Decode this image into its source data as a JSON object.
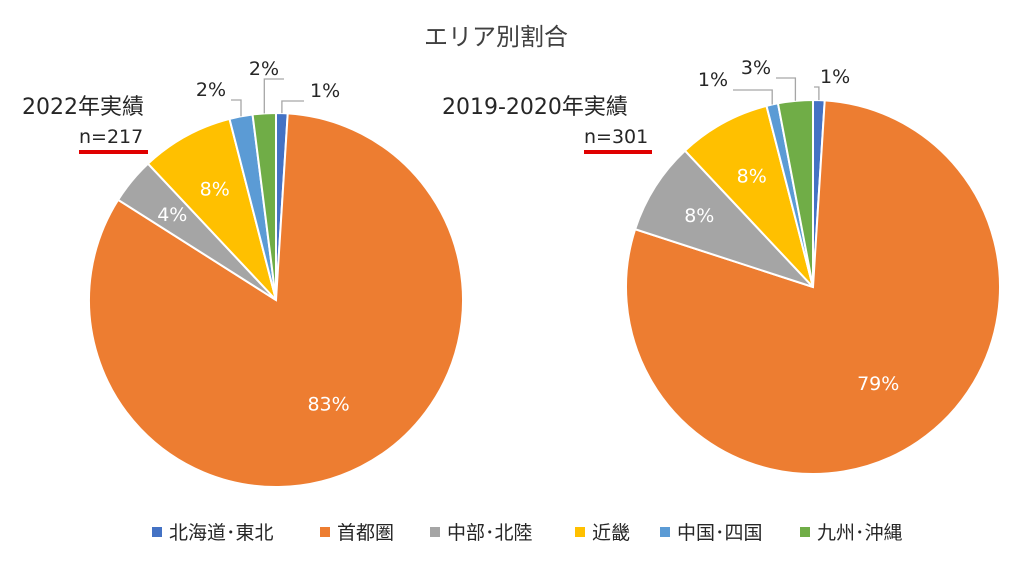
{
  "chart_data": [
    {
      "type": "pie",
      "title": "エリア別割合",
      "name": "2022年実績",
      "n_label": "n=217",
      "categories": [
        "北海道･東北",
        "首都圏",
        "中部･北陸",
        "近畿",
        "中国･四国",
        "九州･沖縄"
      ],
      "values": [
        1,
        83,
        4,
        8,
        2,
        2
      ],
      "labels": [
        "1%",
        "83%",
        "4%",
        "8%",
        "2%",
        "2%"
      ]
    },
    {
      "type": "pie",
      "name": "2019-2020年実績",
      "n_label": "n=301",
      "categories": [
        "北海道･東北",
        "首都圏",
        "中部･北陸",
        "近畿",
        "中国･四国",
        "九州･沖縄"
      ],
      "values": [
        1,
        79,
        8,
        8,
        1,
        3
      ],
      "labels": [
        "1%",
        "79%",
        "8%",
        "8%",
        "1%",
        "3%"
      ]
    }
  ],
  "legend": {
    "placement": "bottom",
    "items": [
      {
        "label": "北海道･東北",
        "color": "#4472c4"
      },
      {
        "label": "首都圏",
        "color": "#ed7d31"
      },
      {
        "label": "中部･北陸",
        "color": "#a5a5a5"
      },
      {
        "label": "近畿",
        "color": "#ffc000"
      },
      {
        "label": "中国･四国",
        "color": "#5b9bd5"
      },
      {
        "label": "九州･沖縄",
        "color": "#70ad47"
      }
    ]
  },
  "colors": {
    "underline": "#e00000",
    "leader": "#a6a6a6"
  }
}
